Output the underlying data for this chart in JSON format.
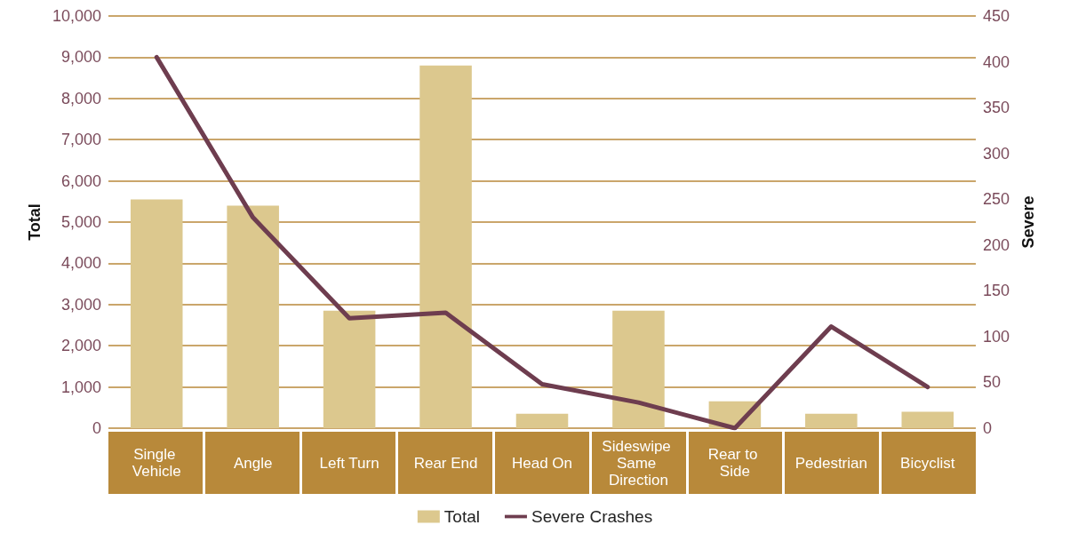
{
  "chart_data": {
    "type": "bar",
    "categories": [
      "Single Vehicle",
      "Angle",
      "Left Turn",
      "Rear End",
      "Head On",
      "Sideswipe Same Direction",
      "Rear to Side",
      "Pedestrian",
      "Bicyclist"
    ],
    "ylabel": "Total",
    "y2label": "Severe",
    "series": [
      {
        "name": "Total",
        "color": "#dcc88e",
        "values": [
          5550,
          5400,
          2850,
          8800,
          350,
          2850,
          650,
          350,
          400
        ]
      },
      {
        "name": "Severe Crashes",
        "type": "line",
        "axis": "y2",
        "color": "#6e3d4f",
        "values": [
          405,
          230,
          120,
          126,
          48,
          28,
          0,
          111,
          45
        ]
      }
    ],
    "ylim": [
      0,
      10000
    ],
    "yticks": [
      0,
      {
        "value": 1000,
        "label": "1,000"
      },
      {
        "value": 2000,
        "label": "2,000"
      },
      {
        "value": 3000,
        "label": "3,000"
      },
      {
        "value": 4000,
        "label": "4,000"
      },
      {
        "value": 5000,
        "label": "5,000"
      },
      {
        "value": 6000,
        "label": "6,000"
      },
      {
        "value": 7000,
        "label": "7,000"
      },
      {
        "value": 8000,
        "label": "8,000"
      },
      {
        "value": 9000,
        "label": "9,000"
      },
      {
        "value": 10000,
        "label": "10,000"
      }
    ],
    "y2lim": [
      0,
      450
    ],
    "y2ticks": [
      0,
      50,
      100,
      150,
      200,
      250,
      300,
      350,
      400,
      450
    ],
    "grid": "y",
    "legend": "bottom",
    "marker": "none",
    "line_style": "solid"
  }
}
